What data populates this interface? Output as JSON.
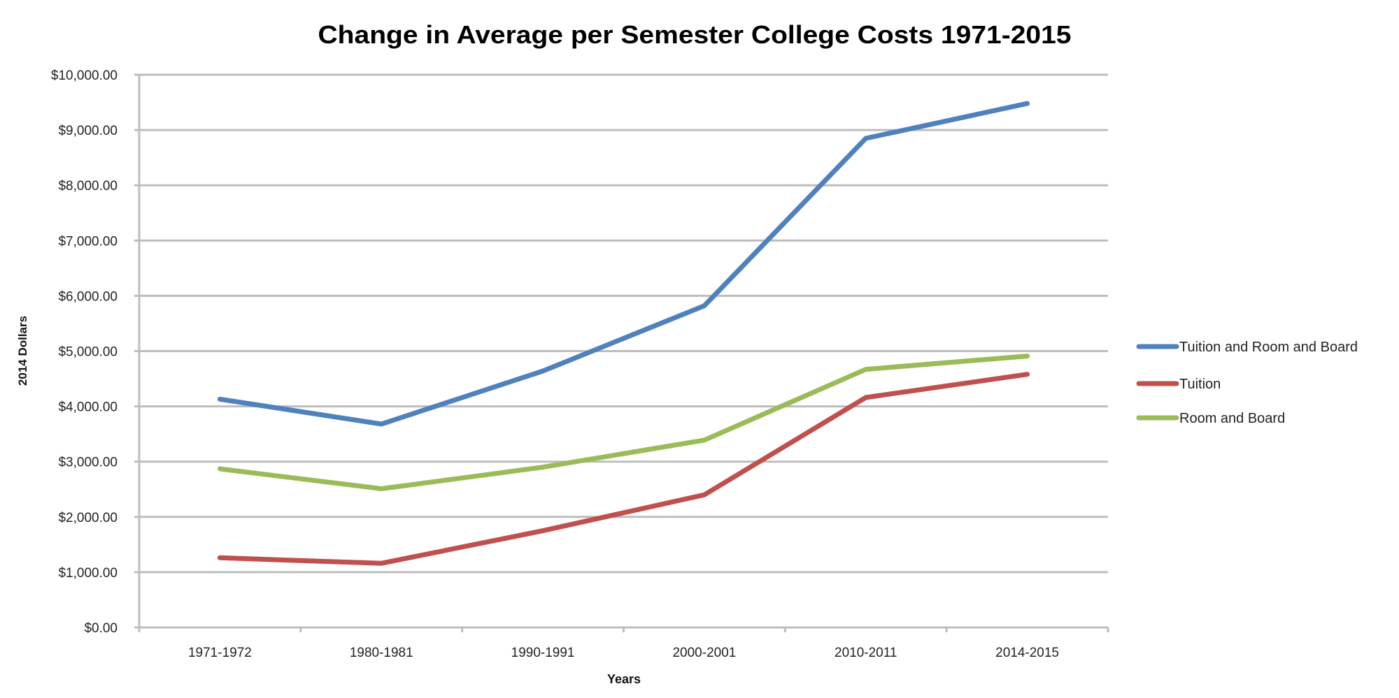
{
  "chart_data": {
    "type": "line",
    "title": "Change in Average per Semester College Costs 1971-2015",
    "xlabel": "Years",
    "ylabel": "2014 Dollars",
    "categories": [
      "1971-1972",
      "1980-1981",
      "1990-1991",
      "2000-2001",
      "2010-2011",
      "2014-2015"
    ],
    "ylim": [
      0,
      10000
    ],
    "y_ticks": [
      0,
      1000,
      2000,
      3000,
      4000,
      5000,
      6000,
      7000,
      8000,
      9000,
      10000
    ],
    "y_tick_labels": [
      "$0.00",
      "$1,000.00",
      "$2,000.00",
      "$3,000.00",
      "$4,000.00",
      "$5,000.00",
      "$6,000.00",
      "$7,000.00",
      "$8,000.00",
      "$9,000.00",
      "$10,000.00"
    ],
    "grid": true,
    "legend_position": "right",
    "series": [
      {
        "name": "Tuition and Room and Board",
        "color": "#4F81BD",
        "values": [
          4130,
          3680,
          4640,
          5820,
          8850,
          9480
        ]
      },
      {
        "name": "Tuition",
        "color": "#C0504D",
        "values": [
          1260,
          1160,
          1750,
          2400,
          4160,
          4580
        ]
      },
      {
        "name": "Room and Board",
        "color": "#9BBB59",
        "values": [
          2870,
          2510,
          2900,
          3390,
          4670,
          4910
        ]
      }
    ]
  }
}
